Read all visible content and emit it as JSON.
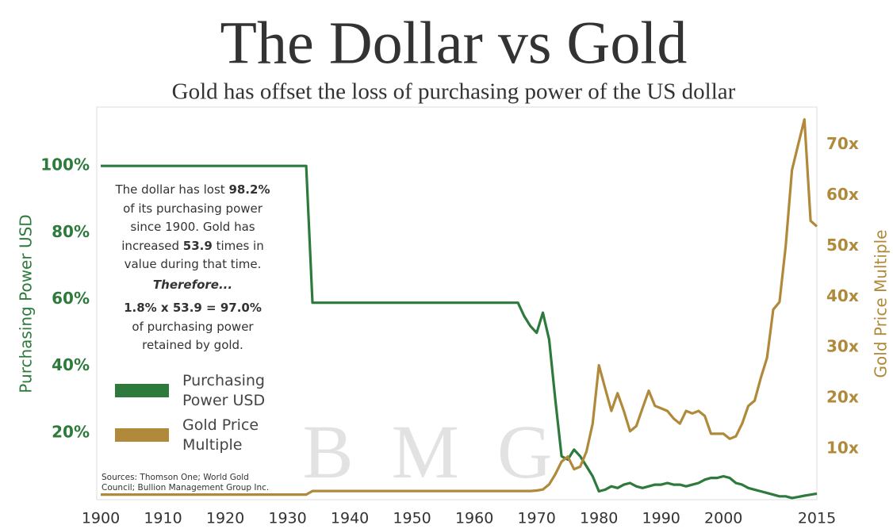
{
  "chart_data": {
    "type": "line",
    "title": "The Dollar vs Gold",
    "subtitle": "Gold has offset the loss of purchasing power of the US dollar",
    "y_label": "Purchasing Power USD",
    "y2_label": "Gold Price Multiple",
    "watermark": "B M G",
    "annotation": [
      [
        "The dollar has lost ",
        "98.2%"
      ],
      [
        "of its purchasing power"
      ],
      [
        "since 1900.  Gold has"
      ],
      [
        "increased ",
        "53.9",
        " times in"
      ],
      [
        "value during that time."
      ],
      [
        "Therefore..."
      ],
      [
        "1.8% x 53.9 = 97.0%"
      ],
      [
        "of purchasing power"
      ],
      [
        "retained by gold."
      ]
    ],
    "sources": [
      "Sources: Thomson One; World Gold",
      "Council; Bullion Management Group Inc."
    ],
    "x": [
      1900,
      1933,
      1934,
      1967,
      1968,
      1969,
      1970,
      1971,
      1972,
      1973,
      1974,
      1975,
      1976,
      1977,
      1978,
      1979,
      1980,
      1981,
      1982,
      1983,
      1984,
      1985,
      1986,
      1987,
      1988,
      1989,
      1990,
      1991,
      1992,
      1993,
      1994,
      1995,
      1996,
      1997,
      1998,
      1999,
      2000,
      2001,
      2002,
      2003,
      2004,
      2005,
      2006,
      2007,
      2008,
      2009,
      2010,
      2011,
      2012,
      2013,
      2014,
      2015
    ],
    "xlim": [
      1900,
      2015
    ],
    "xticks": [
      1900,
      1910,
      1920,
      1930,
      1940,
      1950,
      1960,
      1970,
      1980,
      1990,
      2000,
      2015
    ],
    "ylim": [
      0,
      120
    ],
    "yticks": [
      {
        "value": 20,
        "label": "20%"
      },
      {
        "value": 40,
        "label": "40%"
      },
      {
        "value": 60,
        "label": "60%"
      },
      {
        "value": 80,
        "label": "80%"
      },
      {
        "value": 100,
        "label": "100%"
      }
    ],
    "y2lim": [
      0,
      79
    ],
    "y2ticks": [
      {
        "value": 10,
        "label": "10x"
      },
      {
        "value": 20,
        "label": "20x"
      },
      {
        "value": 30,
        "label": "30x"
      },
      {
        "value": 40,
        "label": "40x"
      },
      {
        "value": 50,
        "label": "50x"
      },
      {
        "value": 60,
        "label": "60x"
      },
      {
        "value": 70,
        "label": "70x"
      }
    ],
    "series": [
      {
        "name": "Purchasing Power USD",
        "color": "#2e7a3c",
        "values": [
          100,
          100,
          59,
          59,
          55,
          52,
          50,
          56,
          48,
          30,
          13,
          12,
          15,
          13,
          10,
          7,
          2.5,
          3,
          4,
          3.5,
          4.5,
          5,
          4,
          3.5,
          4,
          4.5,
          4.5,
          5,
          4.5,
          4.5,
          4,
          4.5,
          5,
          6,
          6.5,
          6.5,
          7,
          6.5,
          5,
          4.5,
          3.5,
          3,
          2.5,
          2,
          1.5,
          1,
          1,
          0.5,
          0.8,
          1.2,
          1.5,
          1.8
        ]
      },
      {
        "name": "Gold Price Multiple",
        "color": "#b08a3a",
        "axis": "y2",
        "values": [
          1,
          1,
          1.7,
          1.7,
          1.7,
          1.7,
          1.8,
          2,
          3,
          5,
          7.5,
          8.5,
          6,
          6.5,
          9.5,
          15,
          26.5,
          22,
          17.5,
          21,
          17.5,
          13.5,
          14.5,
          18,
          21.5,
          18.5,
          18,
          17.5,
          16,
          15,
          17.5,
          17,
          17.5,
          16.5,
          13,
          13,
          13,
          12,
          12.5,
          15,
          18.5,
          19.5,
          24,
          28,
          37.5,
          39,
          50,
          65,
          70,
          75,
          55,
          53.9
        ]
      }
    ]
  }
}
